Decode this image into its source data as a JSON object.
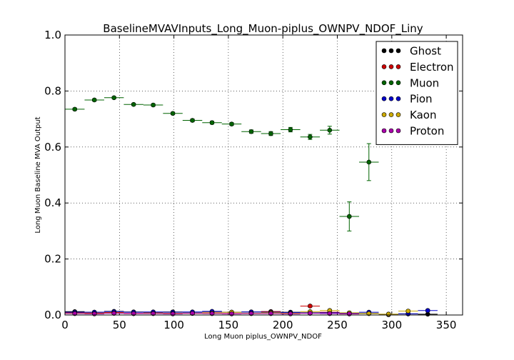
{
  "chart_data": {
    "type": "scatter",
    "title": "BaselineMVAVInputs_Long_Muon-piplus_OWNPV_NDOF_Liny",
    "xlabel": "Long Muon piplus_OWNPV_NDOF",
    "ylabel": "Long Muon Baseline MVA Output",
    "xlim": [
      0,
      365
    ],
    "ylim": [
      0,
      1.0
    ],
    "x_ticks": [
      "0",
      "50",
      "100",
      "150",
      "200",
      "250",
      "300",
      "350"
    ],
    "y_ticks": [
      "0.0",
      "0.2",
      "0.4",
      "0.6",
      "0.8",
      "1.0"
    ],
    "grid": true,
    "legend_position": "top-right",
    "bin_half_width": 9,
    "series": [
      {
        "name": "Ghost",
        "color": "#000000",
        "x": [
          9,
          27,
          45,
          63,
          81,
          99,
          117,
          135,
          153,
          171,
          189,
          207,
          225,
          243,
          261,
          279,
          297,
          315,
          333
        ],
        "y": [
          0.012,
          0.01,
          0.013,
          0.011,
          0.01,
          0.011,
          0.01,
          0.012,
          0.01,
          0.011,
          0.012,
          0.01,
          0.008,
          0.009,
          0.007,
          0.006,
          0.003,
          0.004,
          0.003
        ],
        "yerr": [
          0.002,
          0.002,
          0.002,
          0.002,
          0.002,
          0.002,
          0.002,
          0.002,
          0.002,
          0.002,
          0.002,
          0.002,
          0.002,
          0.002,
          0.002,
          0.002,
          0.002,
          0.002,
          0.002
        ]
      },
      {
        "name": "Electron",
        "color": "#cc0000",
        "x": [
          9,
          27,
          45,
          63,
          81,
          99,
          117,
          135,
          153,
          171,
          189,
          207,
          225,
          243,
          261
        ],
        "y": [
          0.008,
          0.007,
          0.009,
          0.006,
          0.007,
          0.006,
          0.006,
          0.008,
          0.005,
          0.006,
          0.012,
          0.006,
          0.032,
          0.01,
          0.004
        ],
        "yerr": [
          0.002,
          0.002,
          0.002,
          0.002,
          0.002,
          0.002,
          0.002,
          0.002,
          0.002,
          0.002,
          0.003,
          0.002,
          0.004,
          0.003,
          0.002
        ]
      },
      {
        "name": "Muon",
        "color": "#006400",
        "x": [
          9,
          27,
          45,
          63,
          81,
          99,
          117,
          135,
          153,
          171,
          189,
          207,
          225,
          243,
          261,
          279
        ],
        "y": [
          0.735,
          0.768,
          0.776,
          0.752,
          0.75,
          0.72,
          0.695,
          0.687,
          0.682,
          0.655,
          0.648,
          0.662,
          0.636,
          0.66,
          0.352,
          0.546
        ],
        "yerr": [
          0.004,
          0.004,
          0.004,
          0.004,
          0.004,
          0.004,
          0.005,
          0.005,
          0.005,
          0.006,
          0.007,
          0.008,
          0.009,
          0.014,
          0.052,
          0.066
        ]
      },
      {
        "name": "Pion",
        "color": "#0000cc",
        "x": [
          9,
          27,
          45,
          63,
          81,
          99,
          117,
          135,
          153,
          171,
          189,
          207,
          225,
          243,
          261,
          279,
          297,
          315,
          333
        ],
        "y": [
          0.01,
          0.01,
          0.012,
          0.01,
          0.011,
          0.01,
          0.011,
          0.013,
          0.01,
          0.011,
          0.01,
          0.009,
          0.007,
          0.008,
          0.006,
          0.01,
          0.001,
          0.004,
          0.016
        ],
        "yerr": [
          0.001,
          0.001,
          0.001,
          0.001,
          0.001,
          0.001,
          0.001,
          0.001,
          0.001,
          0.001,
          0.001,
          0.001,
          0.001,
          0.002,
          0.002,
          0.003,
          0.001,
          0.002,
          0.004
        ]
      },
      {
        "name": "Kaon",
        "color": "#ccaa00",
        "x": [
          9,
          27,
          45,
          63,
          81,
          99,
          117,
          135,
          153,
          171,
          189,
          207,
          225,
          243,
          261,
          279,
          297,
          315
        ],
        "y": [
          0.006,
          0.005,
          0.007,
          0.005,
          0.006,
          0.005,
          0.006,
          0.007,
          0.01,
          0.006,
          0.008,
          0.006,
          0.012,
          0.016,
          0.008,
          0.005,
          0.003,
          0.014
        ],
        "yerr": [
          0.002,
          0.002,
          0.002,
          0.002,
          0.002,
          0.002,
          0.002,
          0.002,
          0.003,
          0.002,
          0.003,
          0.002,
          0.003,
          0.004,
          0.003,
          0.002,
          0.002,
          0.004
        ]
      },
      {
        "name": "Proton",
        "color": "#aa00aa",
        "x": [
          9,
          27,
          45,
          63,
          81,
          99,
          117,
          135,
          153,
          171,
          189,
          207,
          225,
          243,
          261
        ],
        "y": [
          0.005,
          0.004,
          0.006,
          0.005,
          0.005,
          0.004,
          0.006,
          0.005,
          0.004,
          0.005,
          0.005,
          0.004,
          0.006,
          0.005,
          0.004
        ],
        "yerr": [
          0.002,
          0.002,
          0.002,
          0.002,
          0.002,
          0.002,
          0.002,
          0.002,
          0.002,
          0.002,
          0.002,
          0.002,
          0.002,
          0.002,
          0.002
        ]
      }
    ]
  }
}
